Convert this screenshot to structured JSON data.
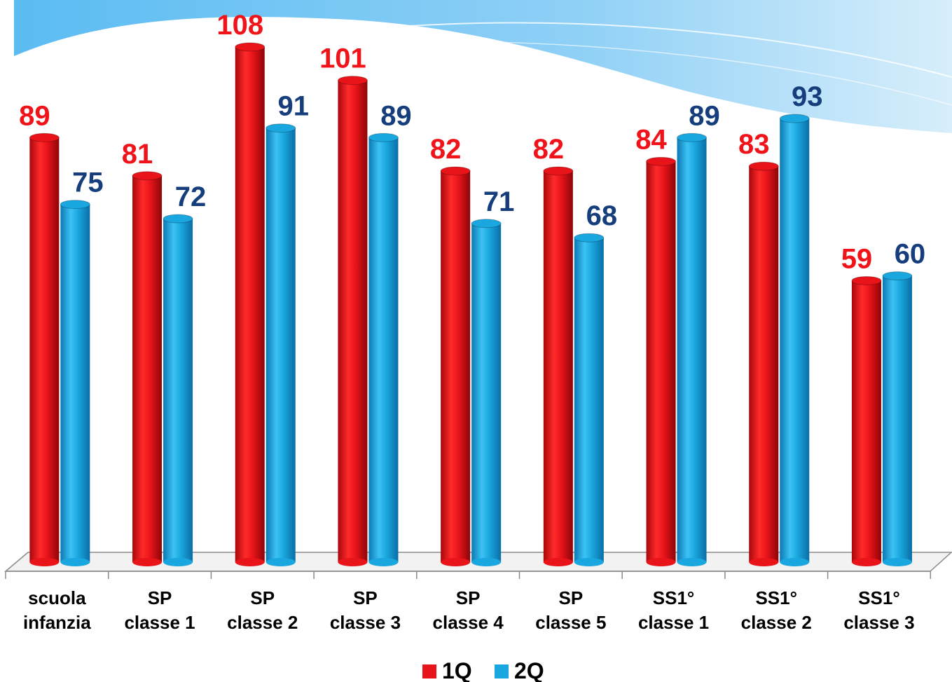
{
  "chart_data": {
    "type": "bar",
    "categories": [
      [
        "scuola",
        "infanzia"
      ],
      [
        "SP",
        "classe 1"
      ],
      [
        "SP",
        "classe 2"
      ],
      [
        "SP",
        "classe 3"
      ],
      [
        "SP",
        "classe 4"
      ],
      [
        "SP",
        "classe 5"
      ],
      [
        "SS1°",
        "classe 1"
      ],
      [
        "SS1°",
        "classe 2"
      ],
      [
        "SS1°",
        "classe 3"
      ]
    ],
    "series": [
      {
        "name": "1Q",
        "values": [
          89,
          81,
          108,
          101,
          82,
          82,
          84,
          83,
          59
        ],
        "color": "#e8141a",
        "label_color": "#f0141a"
      },
      {
        "name": "2Q",
        "values": [
          75,
          72,
          91,
          89,
          71,
          68,
          89,
          93,
          60
        ],
        "color": "#1aa6de",
        "label_color": "#163e7d"
      }
    ],
    "ylim": [
      0,
      108
    ],
    "grid": false,
    "legend": "bottom",
    "title": "",
    "xlabel": "",
    "ylabel": ""
  }
}
